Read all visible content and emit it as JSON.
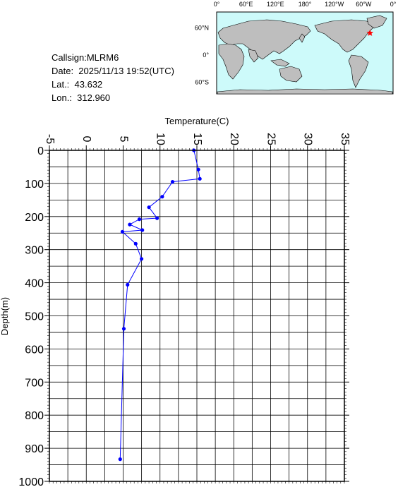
{
  "info": {
    "callsign": "Callsign:MLRM6",
    "date": "Date:  2025/11/13 19:52(UTC)",
    "lat": "Lat.:  43.632",
    "lon": "Lon.:  312.960"
  },
  "map": {
    "lon_labels": [
      "0°",
      "60°E",
      "120°E",
      "180°",
      "120°W",
      "60°W",
      "0°"
    ],
    "lat_labels": [
      "60°N",
      "0°",
      "60°S"
    ],
    "ocean_color": "#cdfafa",
    "land_color": "#bebebe",
    "marker": {
      "lat": 43.632,
      "lon": 312.96,
      "color": "#ff0000",
      "icon": "star-icon"
    }
  },
  "chart_data": {
    "type": "line",
    "xlabel": "Temperature(C)",
    "ylabel": "Depth(m)",
    "xlim": [
      -5,
      35
    ],
    "ylim": [
      0,
      1000
    ],
    "y_inverted": true,
    "x_ticks": [
      "-5",
      "0",
      "5",
      "10",
      "15",
      "20",
      "25",
      "30",
      "35"
    ],
    "y_ticks": [
      "0",
      "100",
      "200",
      "300",
      "400",
      "500",
      "600",
      "700",
      "800",
      "900",
      "1000"
    ],
    "grid": true,
    "series": [
      {
        "color": "#0000ff",
        "points": [
          {
            "t": 14.6,
            "d": 0
          },
          {
            "t": 15.2,
            "d": 58
          },
          {
            "t": 15.4,
            "d": 86
          },
          {
            "t": 11.7,
            "d": 95
          },
          {
            "t": 10.3,
            "d": 140
          },
          {
            "t": 8.5,
            "d": 172
          },
          {
            "t": 9.6,
            "d": 205
          },
          {
            "t": 7.2,
            "d": 208
          },
          {
            "t": 5.9,
            "d": 224
          },
          {
            "t": 7.6,
            "d": 241
          },
          {
            "t": 4.9,
            "d": 246
          },
          {
            "t": 6.7,
            "d": 282
          },
          {
            "t": 7.5,
            "d": 328
          },
          {
            "t": 5.6,
            "d": 406
          },
          {
            "t": 5.1,
            "d": 539
          },
          {
            "t": 4.6,
            "d": 933
          }
        ]
      }
    ]
  }
}
